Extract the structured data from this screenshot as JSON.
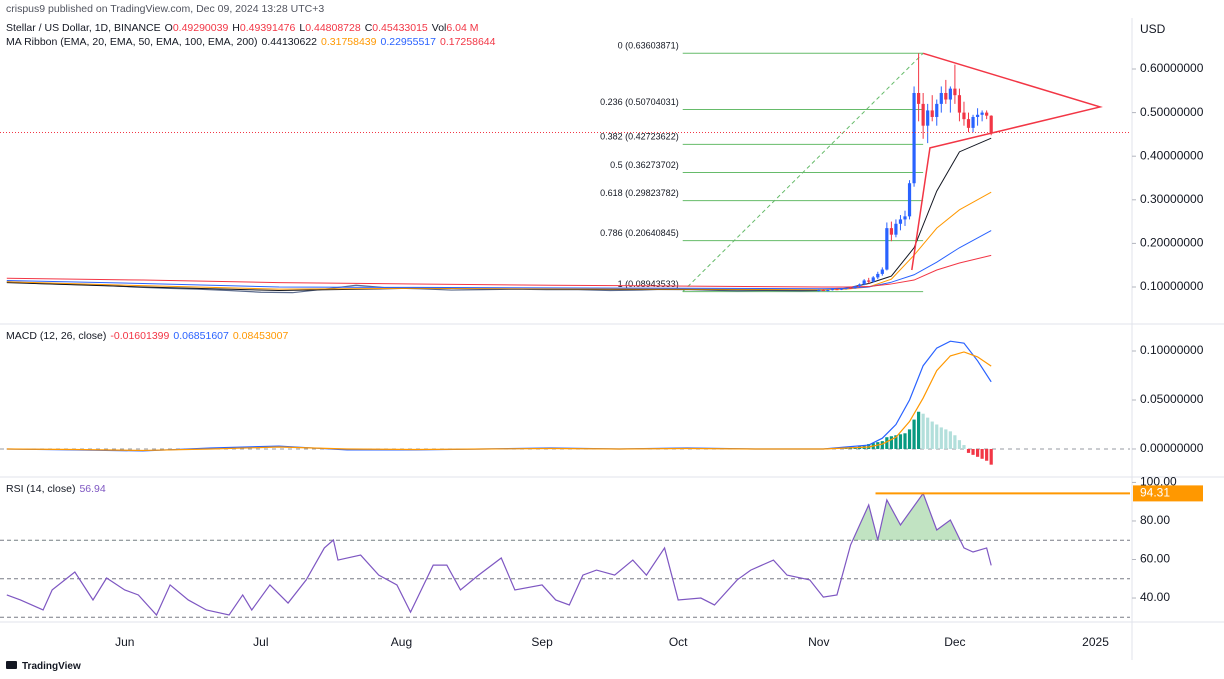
{
  "header": {
    "publisher": "crispus9 published on TradingView.com, Dec 09, 2024 13:28 UTC+3",
    "symbol": "Stellar / US Dollar, 1D, BINANCE",
    "value_color": "#f23645",
    "ohlc": [
      {
        "label": "O",
        "value": "0.49290039"
      },
      {
        "label": "H",
        "value": "0.49391476"
      },
      {
        "label": "L",
        "value": "0.44808728"
      },
      {
        "label": "C",
        "value": "0.45433015"
      },
      {
        "label": "Vol",
        "value": "6.04 M"
      }
    ]
  },
  "footer": {
    "brand": "TradingView"
  },
  "chart_data": [
    {
      "type": "candlestick",
      "ribbon_title": "MA Ribbon (EMA, 20, EMA, 50, EMA, 100, EMA, 200)",
      "unit_label": "USD",
      "xlim": [
        -1.5,
        247.6
      ],
      "ylim": [
        0.0197,
        0.717
      ],
      "yticks": [
        {
          "value": 0.1,
          "label": "0.10000000"
        },
        {
          "value": 0.2,
          "label": "0.20000000"
        },
        {
          "value": 0.3,
          "label": "0.30000000"
        },
        {
          "value": 0.4,
          "label": "0.40000000"
        },
        {
          "value": 0.5,
          "label": "0.50000000"
        },
        {
          "value": 0.6,
          "label": "0.60000000"
        }
      ],
      "close_line": {
        "color": "#5b6b8c",
        "x": [
          0,
          7,
          14,
          21,
          28,
          35,
          42,
          49,
          56,
          63,
          70,
          77,
          84,
          91,
          98,
          105,
          112,
          119,
          126,
          133,
          140,
          147,
          154,
          161,
          168,
          175,
          179
        ],
        "values": [
          0.112,
          0.108,
          0.106,
          0.104,
          0.1,
          0.097,
          0.095,
          0.092,
          0.088,
          0.087,
          0.095,
          0.104,
          0.098,
          0.096,
          0.093,
          0.094,
          0.095,
          0.094,
          0.094,
          0.092,
          0.093,
          0.096,
          0.093,
          0.091,
          0.092,
          0.091,
          0.092
        ]
      },
      "candles": {
        "up_color": "#2962ff",
        "down_color": "#f23645",
        "x": [
          179,
          180,
          181,
          182,
          183,
          184,
          185,
          186,
          187,
          188,
          189,
          190,
          191,
          192,
          193,
          194,
          195,
          196,
          197,
          198,
          199,
          200,
          201,
          202,
          203,
          204,
          205,
          206,
          207,
          208,
          209,
          210,
          211,
          212,
          213,
          214,
          215,
          216,
          217
        ],
        "open": [
          0.092,
          0.093,
          0.092,
          0.093,
          0.095,
          0.094,
          0.096,
          0.098,
          0.097,
          0.102,
          0.106,
          0.115,
          0.112,
          0.122,
          0.13,
          0.14,
          0.235,
          0.22,
          0.245,
          0.255,
          0.262,
          0.338,
          0.545,
          0.52,
          0.47,
          0.505,
          0.49,
          0.52,
          0.545,
          0.53,
          0.555,
          0.54,
          0.5,
          0.485,
          0.465,
          0.49,
          0.495,
          0.5,
          0.49290039
        ],
        "high": [
          0.094,
          0.095,
          0.094,
          0.096,
          0.097,
          0.097,
          0.099,
          0.101,
          0.103,
          0.108,
          0.118,
          0.121,
          0.125,
          0.135,
          0.145,
          0.248,
          0.25,
          0.255,
          0.265,
          0.275,
          0.345,
          0.56,
          0.636,
          0.545,
          0.52,
          0.54,
          0.53,
          0.56,
          0.575,
          0.56,
          0.61,
          0.555,
          0.525,
          0.5,
          0.495,
          0.51,
          0.505,
          0.505,
          0.49391476
        ],
        "low": [
          0.09,
          0.091,
          0.09,
          0.092,
          0.093,
          0.093,
          0.094,
          0.096,
          0.096,
          0.1,
          0.104,
          0.108,
          0.11,
          0.118,
          0.126,
          0.138,
          0.205,
          0.214,
          0.23,
          0.24,
          0.255,
          0.33,
          0.48,
          0.44,
          0.43,
          0.48,
          0.47,
          0.5,
          0.52,
          0.5,
          0.52,
          0.48,
          0.47,
          0.455,
          0.455,
          0.47,
          0.48,
          0.485,
          0.44808728
        ],
        "close": [
          0.093,
          0.092,
          0.093,
          0.095,
          0.094,
          0.096,
          0.098,
          0.097,
          0.102,
          0.106,
          0.115,
          0.112,
          0.122,
          0.13,
          0.14,
          0.235,
          0.22,
          0.245,
          0.255,
          0.262,
          0.338,
          0.545,
          0.52,
          0.47,
          0.505,
          0.49,
          0.52,
          0.545,
          0.53,
          0.555,
          0.54,
          0.5,
          0.485,
          0.465,
          0.49,
          0.495,
          0.5,
          0.493,
          0.45433015
        ]
      },
      "ema_x": [
        0,
        30,
        60,
        90,
        120,
        150,
        180,
        185,
        190,
        195,
        200,
        205,
        210,
        217
      ],
      "series": [
        {
          "color": "#131722",
          "value_label": "0.44130622",
          "values": [
            0.11,
            0.1,
            0.092,
            0.097,
            0.095,
            0.094,
            0.093,
            0.097,
            0.108,
            0.125,
            0.19,
            0.32,
            0.41,
            0.44130622
          ]
        },
        {
          "color": "#ff9800",
          "value_label": "0.31758439",
          "values": [
            0.112,
            0.103,
            0.095,
            0.097,
            0.096,
            0.095,
            0.094,
            0.095,
            0.1,
            0.118,
            0.173,
            0.235,
            0.277,
            0.31758439
          ]
        },
        {
          "color": "#2962ff",
          "value_label": "0.22955517",
          "values": [
            0.115,
            0.108,
            0.1,
            0.099,
            0.098,
            0.097,
            0.096,
            0.097,
            0.1,
            0.111,
            0.128,
            0.157,
            0.19,
            0.22955517
          ]
        },
        {
          "color": "#f23645",
          "value_label": "0.17258644",
          "values": [
            0.12,
            0.116,
            0.11,
            0.107,
            0.104,
            0.102,
            0.1,
            0.1,
            0.101,
            0.107,
            0.116,
            0.139,
            0.155,
            0.17258644
          ]
        }
      ],
      "fibonacci": {
        "color": "#66bb6a",
        "x": [
          149,
          202
        ],
        "levels": [
          {
            "label": "0 (0.63603871)",
            "value": 0.63603871
          },
          {
            "label": "0.236 (0.50704031)",
            "value": 0.50704031
          },
          {
            "label": "0.382 (0.42723622)",
            "value": 0.42723622
          },
          {
            "label": "0.5 (0.36273702)",
            "value": 0.36273702
          },
          {
            "label": "0.618 (0.29823782)",
            "value": 0.29823782
          },
          {
            "label": "0.786 (0.20640845)",
            "value": 0.20640845
          },
          {
            "label": "1 (0.08943533)",
            "value": 0.08943533
          }
        ]
      },
      "trendline": {
        "color": "#f23645",
        "x": [
          199.5,
          203.5,
          241,
          202
        ],
        "y": [
          0.139,
          0.419,
          0.513,
          0.636
        ]
      }
    },
    {
      "type": "macd",
      "title": "MACD (12, 26, close)",
      "xlim": [
        -1.5,
        247.6
      ],
      "ylim": [
        -0.0286,
        0.1245
      ],
      "yticks": [
        {
          "value": 0,
          "label": "0.00000000"
        },
        {
          "value": 0.05,
          "label": "0.05000000"
        },
        {
          "value": 0.1,
          "label": "0.10000000"
        }
      ],
      "histogram": {
        "value_label": "-0.01601399",
        "colors": [
          "#089981",
          "#b2dfdb",
          "#f23645",
          "#fccbcd"
        ],
        "x": [
          185,
          186,
          187,
          188,
          189,
          190,
          191,
          192,
          193,
          194,
          195,
          196,
          197,
          198,
          199,
          200,
          201,
          202,
          203,
          204,
          205,
          206,
          207,
          208,
          209,
          210,
          211,
          212,
          213,
          214,
          215,
          216,
          217
        ],
        "values": [
          0.001,
          0.002,
          0.002,
          0.003,
          0.004,
          0.005,
          0.006,
          0.007,
          0.008,
          0.012,
          0.013,
          0.014,
          0.015,
          0.016,
          0.02,
          0.03,
          0.038,
          0.036,
          0.032,
          0.028,
          0.025,
          0.022,
          0.02,
          0.018,
          0.014,
          0.009,
          0.004,
          -0.004,
          -0.006,
          -0.008,
          -0.01,
          -0.012,
          -0.01601399
        ]
      },
      "x": [
        0,
        15,
        30,
        45,
        60,
        75,
        90,
        105,
        120,
        135,
        150,
        165,
        180,
        185,
        190,
        193,
        196,
        199,
        202,
        205,
        208,
        211,
        214,
        217
      ],
      "series": [
        {
          "color": "#2962ff",
          "value_label": "0.06851607",
          "values": [
            0.0,
            -0.001,
            -0.002,
            0.001,
            0.003,
            -0.001,
            -0.001,
            0.0,
            0.001,
            0.0,
            0.001,
            0.0,
            0.0,
            0.002,
            0.004,
            0.011,
            0.025,
            0.05,
            0.085,
            0.103,
            0.11,
            0.108,
            0.09,
            0.06851607
          ]
        },
        {
          "color": "#ff9800",
          "value_label": "0.08453007",
          "values": [
            0.0,
            -0.0005,
            -0.0015,
            0.0,
            0.002,
            0.0,
            -0.0005,
            0.0,
            0.0005,
            0.0,
            0.0005,
            0.0,
            0.0,
            0.001,
            0.002,
            0.005,
            0.012,
            0.028,
            0.052,
            0.08,
            0.095,
            0.099,
            0.094,
            0.08453007
          ]
        }
      ]
    },
    {
      "type": "rsi",
      "title": "RSI (14, close)",
      "value_label": "56.94",
      "color": "#7e57c2",
      "fill_color": "#4caf50",
      "xlim": [
        -1.5,
        247.6
      ],
      "ylim": [
        28.6,
        102.3
      ],
      "yticks": [
        {
          "value": 40,
          "label": "40.00"
        },
        {
          "value": 60,
          "label": "60.00"
        },
        {
          "value": 80,
          "label": "80.00"
        },
        {
          "value": 100,
          "label": "100.00"
        }
      ],
      "bands": [
        70,
        50,
        30
      ],
      "peak": {
        "value": 94.31,
        "x": 191.5,
        "color": "#ff9800"
      },
      "xticks": [
        {
          "value": 26,
          "label": "Jun"
        },
        {
          "value": 56,
          "label": "Jul"
        },
        {
          "value": 87,
          "label": "Aug"
        },
        {
          "value": 118,
          "label": "Sep"
        },
        {
          "value": 148,
          "label": "Oct"
        },
        {
          "value": 179,
          "label": "Nov"
        },
        {
          "value": 209,
          "label": "Dec"
        },
        {
          "value": 240,
          "label": "2025"
        }
      ],
      "x": [
        0,
        3,
        8,
        10,
        15,
        19,
        22,
        26,
        29,
        33,
        36,
        40,
        44,
        49,
        52,
        54,
        58,
        62,
        66,
        70,
        72,
        73,
        78,
        82,
        86,
        89,
        94,
        97,
        100,
        104,
        109,
        112,
        118,
        121,
        124,
        127,
        130,
        134,
        138,
        141,
        145,
        148,
        153,
        156,
        161,
        164,
        169,
        172,
        177,
        180,
        183,
        186,
        190,
        192,
        194,
        197,
        202,
        205,
        208,
        211,
        213,
        216,
        217
      ],
      "values": [
        41.6,
        39.0,
        33.8,
        44.2,
        53.5,
        39.0,
        50.4,
        44.2,
        41.6,
        31.2,
        46.8,
        39.0,
        33.8,
        31.2,
        41.6,
        33.8,
        46.8,
        37.4,
        49.4,
        66.0,
        70.1,
        59.7,
        62.3,
        51.9,
        46.8,
        32.7,
        57.1,
        57.1,
        44.2,
        51.9,
        60.8,
        44.2,
        46.8,
        39.0,
        36.4,
        51.9,
        54.5,
        51.9,
        59.7,
        51.9,
        66.0,
        39.0,
        40.0,
        36.4,
        49.4,
        54.5,
        59.7,
        51.9,
        49.4,
        40.5,
        41.6,
        67.5,
        88.3,
        70.1,
        90.9,
        77.9,
        94.31,
        75.3,
        80.5,
        66.0,
        63.9,
        66.0,
        56.94
      ]
    }
  ]
}
